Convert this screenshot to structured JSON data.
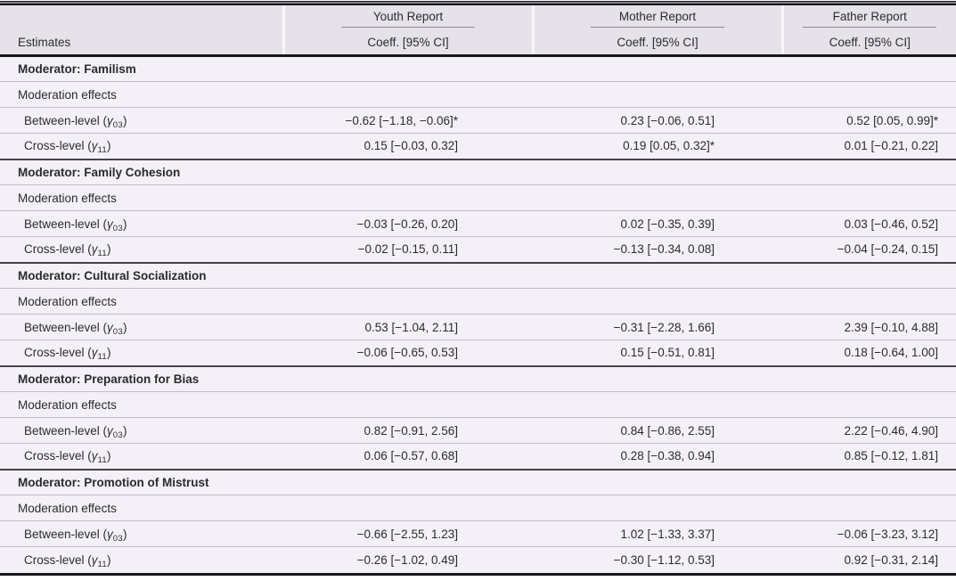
{
  "table": {
    "estimates_header": "Estimates",
    "coeff_header": "Coeff. [95% CI]",
    "report_columns": [
      "Youth Report",
      "Mother Report",
      "Father Report"
    ],
    "effects_label": "Moderation effects",
    "sections": [
      {
        "title": "Moderator: Familism",
        "rows": [
          {
            "label": {
              "pre": "Between-level (",
              "symbol": "γ",
              "sub": "03",
              "post": ")"
            },
            "values": [
              "−0.62 [−1.18, −0.06]*",
              "0.23 [−0.06, 0.51]",
              "0.52 [0.05, 0.99]*"
            ]
          },
          {
            "label": {
              "pre": "Cross-level (",
              "symbol": "γ",
              "sub": "11",
              "post": ")"
            },
            "values": [
              "0.15 [−0.03, 0.32]",
              "0.19 [0.05, 0.32]*",
              "0.01 [−0.21, 0.22]"
            ]
          }
        ]
      },
      {
        "title": "Moderator: Family Cohesion",
        "rows": [
          {
            "label": {
              "pre": "Between-level (",
              "symbol": "γ",
              "sub": "03",
              "post": ")"
            },
            "values": [
              "−0.03 [−0.26, 0.20]",
              "0.02 [−0.35, 0.39]",
              "0.03 [−0.46, 0.52]"
            ]
          },
          {
            "label": {
              "pre": "Cross-level (",
              "symbol": "γ",
              "sub": "11",
              "post": ")"
            },
            "values": [
              "−0.02 [−0.15, 0.11]",
              "−0.13 [−0.34, 0.08]",
              "−0.04 [−0.24, 0.15]"
            ]
          }
        ]
      },
      {
        "title": "Moderator: Cultural Socialization",
        "rows": [
          {
            "label": {
              "pre": "Between-level (",
              "symbol": "γ",
              "sub": "03",
              "post": ")"
            },
            "values": [
              "0.53 [−1.04, 2.11]",
              "−0.31 [−2.28, 1.66]",
              "2.39 [−0.10, 4.88]"
            ]
          },
          {
            "label": {
              "pre": "Cross-level (",
              "symbol": "γ",
              "sub": "11",
              "post": ")"
            },
            "values": [
              "−0.06 [−0.65, 0.53]",
              "0.15 [−0.51, 0.81]",
              "0.18 [−0.64, 1.00]"
            ]
          }
        ]
      },
      {
        "title": "Moderator: Preparation for Bias",
        "rows": [
          {
            "label": {
              "pre": "Between-level (",
              "symbol": "γ",
              "sub": "03",
              "post": ")"
            },
            "values": [
              "0.82 [−0.91, 2.56]",
              "0.84 [−0.86, 2.55]",
              "2.22 [−0.46, 4.90]"
            ]
          },
          {
            "label": {
              "pre": "Cross-level (",
              "symbol": "γ",
              "sub": "11",
              "post": ")"
            },
            "values": [
              "0.06 [−0.57, 0.68]",
              "0.28 [−0.38, 0.94]",
              "0.85 [−0.12, 1.81]"
            ]
          }
        ]
      },
      {
        "title": "Moderator: Promotion of Mistrust",
        "rows": [
          {
            "label": {
              "pre": "Between-level (",
              "symbol": "γ",
              "sub": "03",
              "post": ")"
            },
            "values": [
              "−0.66 [−2.55, 1.23]",
              "1.02 [−1.33, 3.37]",
              "−0.06 [−3.23, 3.12]"
            ]
          },
          {
            "label": {
              "pre": "Cross-level (",
              "symbol": "γ",
              "sub": "11",
              "post": ")"
            },
            "values": [
              "−0.26 [−1.02, 0.49]",
              "−0.30 [−1.12, 0.53]",
              "0.92 [−0.31, 2.14]"
            ]
          }
        ]
      }
    ],
    "colors": {
      "header_bg": "#e6e2e9",
      "body_bg": "#f4f0f7",
      "rule_dark": "#17161b",
      "rule_section": "#46424b",
      "rule_light": "#c1bcc6",
      "text": "#2c2a31"
    }
  }
}
